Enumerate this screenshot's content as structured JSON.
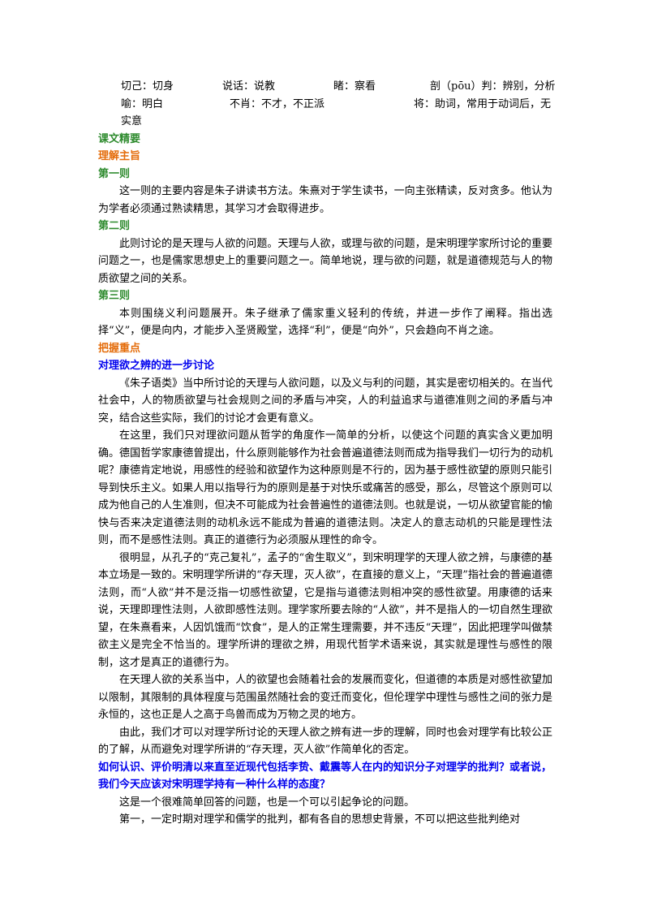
{
  "vocab": {
    "row1": [
      "切己：切身",
      "说话：说教",
      "睹：察看",
      "剖（pōu）判：辨别，分析"
    ],
    "row2": [
      "喻：明白",
      "不肖：不才，不正派",
      "将：助词，常用于动词后，无"
    ],
    "row3": "实意"
  },
  "headings": {
    "essentials": "课文精要",
    "theme": "理解主旨",
    "part1": "第一则",
    "part2": "第二则",
    "part3": "第三则",
    "key_points": "把握重点",
    "discussion": "对理欲之辨的进一步讨论",
    "question": "如何认识、评价明清以来直至近现代包括李贽、戴震等人在内的知识分子对理学的批判？或者说，我们今天应该对宋明理学持有一种什么样的态度？"
  },
  "paragraphs": {
    "part1": "这一则的主要内容是朱子讲读书方法。朱熹对于学生读书，一向主张精读，反对贪多。他认为为学者必须通过熟读精思，其学习才会取得进步。",
    "part2": "此则讨论的是天理与人欲的问题。天理与人欲，或理与欲的问题，是宋明理学家所讨论的重要问题之一，也是儒家思想史上的重要问题之一。简单地说，理与欲的问题，就是道德规范与人的物质欲望之间的关系。",
    "part3": "本则围绕义利问题展开。朱子继承了儒家重义轻利的传统，并进一步作了阐释。指出选择“义”，便是向内，才能步入圣贤殿堂，选择“利”，便是“向外”，只会趋向不肖之途。",
    "d1": "《朱子语类》当中所讨论的天理与人欲问题，以及义与利的问题，其实是密切相关的。在当代社会中，人的物质欲望与社会规则之间的矛盾与冲突，人的利益追求与道德准则之间的矛盾与冲突，结合这些实际，我们的讨论才会更有意义。",
    "d2": "在这里，我们只对理欲问题从哲学的角度作一简单的分析，以使这个问题的真实含义更加明确。德国哲学家康德曾提出，什么原则能够作为社会普遍道德法则而成为指导我们一切行为的动机呢？康德肯定地说，用感性的经验和欲望作为这种原则是不行的，因为基于感性欲望的原则只能引导到快乐主义。如果人用以指导行为的原则是基于对快乐或痛苦的感受，那么，尽管这个原则可以成为他自己的人生准则，但决不可能成为社会普遍性的道德法则。也就是说，一切从欲望官能的愉快与否来决定道德法则的动机永远不能成为普遍的道德法则。决定人的意志动机的只能是理性法则，而不是感性法则。真正的道德行为必须服从理性的命令。",
    "d3": "很明显，从孔子的“克己复礼”，孟子的“舍生取义”，到宋明理学的天理人欲之辨，与康德的基本立场是一致的。宋明理学所讲的“存天理，灭人欲”，在直接的意义上，“天理”指社会的普遍道德法则，而“人欲”并不是泛指一切感性欲望，它是指与道德法则相冲突的感性欲望。用康德的话来说，天理即理性法则，人欲即感性法则。理学家所要去除的“人欲”，并不是指人的一切自然生理欲望，在朱熹看来，人因饥饿而“饮食”，是人的正常生理需要，并不违反“天理”，因此把理学叫做禁欲主义是完全不恰当的。理学所讲的理欲之辨，用现代哲学术语来说，其实就是理性与感性的限制，这才是真正的道德行为。",
    "d4": "在天理人欲的关系当中，人的欲望也会随着社会的发展而变化，但道德的本质是对感性欲望加以限制，其限制的具体程度与范围虽然随社会的变迁而变化，但伦理学中理性与感性之间的张力是永恒的，这也正是人之高于鸟兽而成为万物之灵的地方。",
    "d5": "由此，我们才可以对理学所讨论的天理人欲之辨有进一步的理解，同时也会对理学有比较公正的了解，从而避免对理学所讲的“存天理，灭人欲”作简单化的否定。",
    "q1": "这是一个很难简单回答的问题，也是一个可以引起争论的问题。",
    "q2": "第一，一定时期对理学和儒学的批判，都有各自的思想史背景，不可以把这些批判绝对"
  }
}
